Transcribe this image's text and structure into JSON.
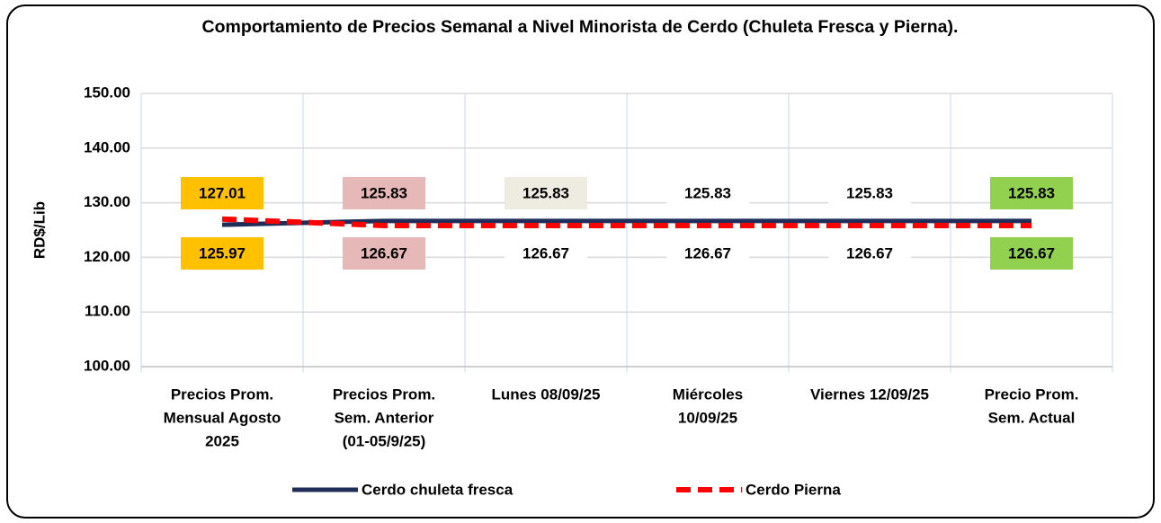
{
  "chart_data": {
    "type": "line",
    "title": "Comportamiento de Precios Semanal a Nivel Minorista de Cerdo (Chuleta Fresca y Pierna).",
    "y_label": "RD$/Lib",
    "categories": [
      [
        "Precios Prom.",
        "Mensual Agosto",
        "2025"
      ],
      [
        "Precios Prom.",
        "Sem. Anterior",
        "(01-05/9/25)"
      ],
      [
        "Lunes  08/09/25"
      ],
      [
        "Miércoles",
        "10/09/25"
      ],
      [
        "Viernes 12/09/25"
      ],
      [
        "Precio Prom.",
        "Sem. Actual"
      ]
    ],
    "series": [
      {
        "name": "Cerdo chuleta fresca",
        "color": "#1f2d5a",
        "dash": false,
        "label_position": "below",
        "values": [
          125.97,
          126.67,
          126.67,
          126.67,
          126.67,
          126.67
        ],
        "label_colors": [
          "#ffc000",
          "#e6b8b7",
          null,
          null,
          null,
          "#92d050"
        ]
      },
      {
        "name": "Cerdo Pierna",
        "color": "#ff0000",
        "dash": true,
        "label_position": "above",
        "values": [
          127.01,
          125.83,
          125.83,
          125.83,
          125.83,
          125.83
        ],
        "label_colors": [
          "#ffc000",
          "#e6b8b7",
          "#eeece1",
          null,
          null,
          "#92d050"
        ]
      }
    ],
    "ylim": [
      100,
      150
    ],
    "yticks": [
      {
        "value": 100,
        "label": "100.00"
      },
      {
        "value": 110,
        "label": "110.00"
      },
      {
        "value": 120,
        "label": "120.00"
      },
      {
        "value": 130,
        "label": "130.00"
      },
      {
        "value": 140,
        "label": "140.00"
      },
      {
        "value": 150,
        "label": "150.00"
      }
    ],
    "grid": true,
    "legend": "bottom"
  }
}
